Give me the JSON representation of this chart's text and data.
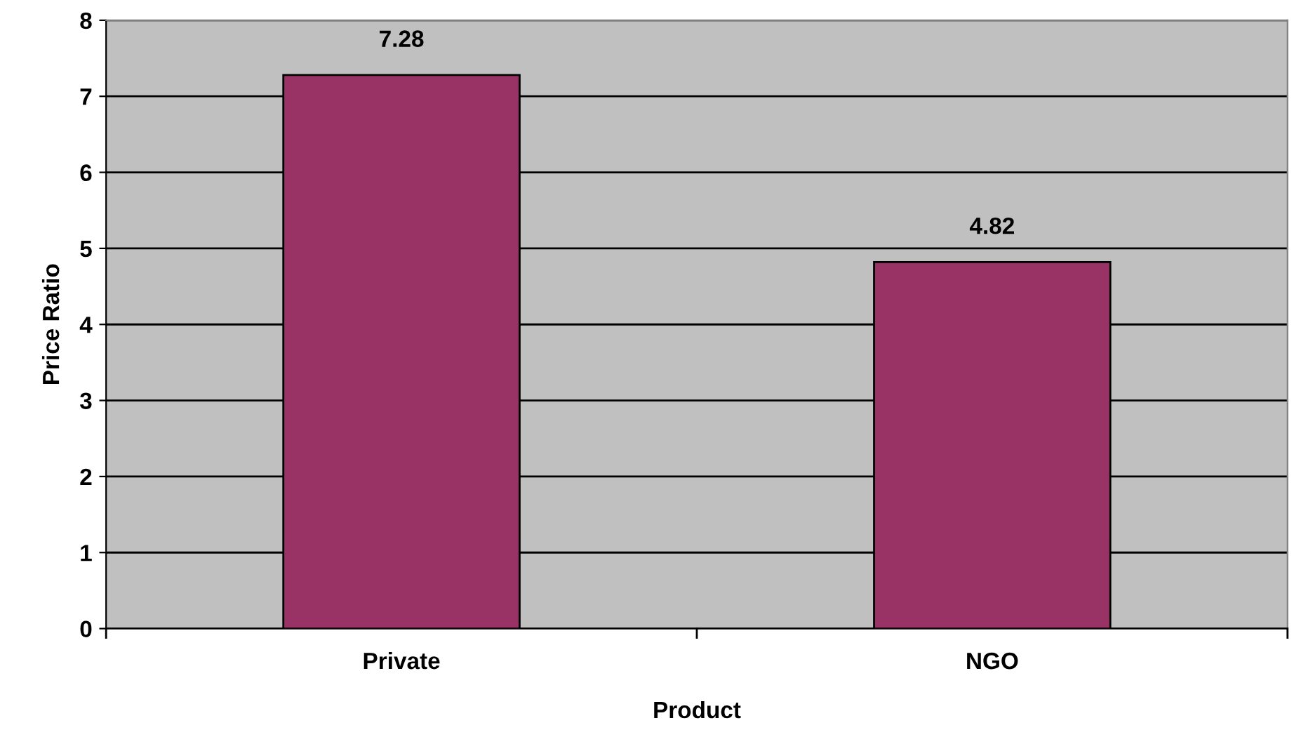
{
  "chart_data": {
    "type": "bar",
    "xlabel": "Product",
    "ylabel": "Price Ratio",
    "categories": [
      "Private",
      "NGO"
    ],
    "values": [
      7.28,
      4.82
    ],
    "color": "#993366",
    "ylim": [
      0,
      8
    ],
    "yticks": [
      0,
      1,
      2,
      3,
      4,
      5,
      6,
      7,
      8
    ],
    "grid": "y",
    "data_labels": true
  }
}
